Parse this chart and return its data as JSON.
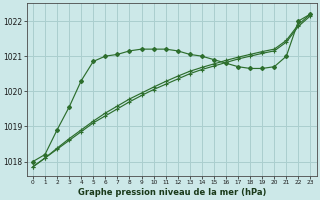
{
  "title": "Graphe pression niveau de la mer (hPa)",
  "bg_color": "#cce8e8",
  "grid_color": "#aacece",
  "line_color": "#2d6e2d",
  "ylim": [
    1017.6,
    1022.5
  ],
  "xlim": [
    -0.5,
    23.5
  ],
  "yticks": [
    1018,
    1019,
    1020,
    1021,
    1022
  ],
  "xticks": [
    0,
    1,
    2,
    3,
    4,
    5,
    6,
    7,
    8,
    9,
    10,
    11,
    12,
    13,
    14,
    15,
    16,
    17,
    18,
    19,
    20,
    21,
    22,
    23
  ],
  "curve_x": [
    0,
    1,
    2,
    3,
    4,
    5,
    6,
    7,
    8,
    9,
    10,
    11,
    12,
    13,
    14,
    15,
    16,
    17,
    18,
    19,
    20,
    21,
    22,
    23
  ],
  "curve_y": [
    1018.0,
    1018.2,
    1018.9,
    1019.55,
    1020.3,
    1020.85,
    1021.0,
    1021.05,
    1021.15,
    1021.2,
    1021.2,
    1021.2,
    1021.15,
    1021.05,
    1021.0,
    1020.9,
    1020.8,
    1020.7,
    1020.65,
    1020.65,
    1020.7,
    1021.0,
    1022.0,
    1022.2
  ],
  "diag1_x": [
    0,
    1,
    2,
    3,
    4,
    5,
    6,
    7,
    8,
    9,
    10,
    11,
    12,
    13,
    14,
    15,
    16,
    17,
    18,
    19,
    20,
    21,
    22,
    23
  ],
  "diag1_y": [
    1017.85,
    1018.1,
    1018.35,
    1018.6,
    1018.85,
    1019.1,
    1019.3,
    1019.5,
    1019.7,
    1019.88,
    1020.05,
    1020.2,
    1020.35,
    1020.5,
    1020.62,
    1020.72,
    1020.82,
    1020.92,
    1021.0,
    1021.08,
    1021.15,
    1021.4,
    1021.85,
    1022.15
  ],
  "diag2_x": [
    0,
    1,
    2,
    3,
    4,
    5,
    6,
    7,
    8,
    9,
    10,
    11,
    12,
    13,
    14,
    15,
    16,
    17,
    18,
    19,
    20,
    21,
    22,
    23
  ],
  "diag2_y": [
    1017.85,
    1018.1,
    1018.38,
    1018.65,
    1018.9,
    1019.15,
    1019.38,
    1019.58,
    1019.78,
    1019.95,
    1020.12,
    1020.28,
    1020.43,
    1020.57,
    1020.68,
    1020.78,
    1020.88,
    1020.97,
    1021.05,
    1021.13,
    1021.2,
    1021.45,
    1021.9,
    1022.2
  ]
}
